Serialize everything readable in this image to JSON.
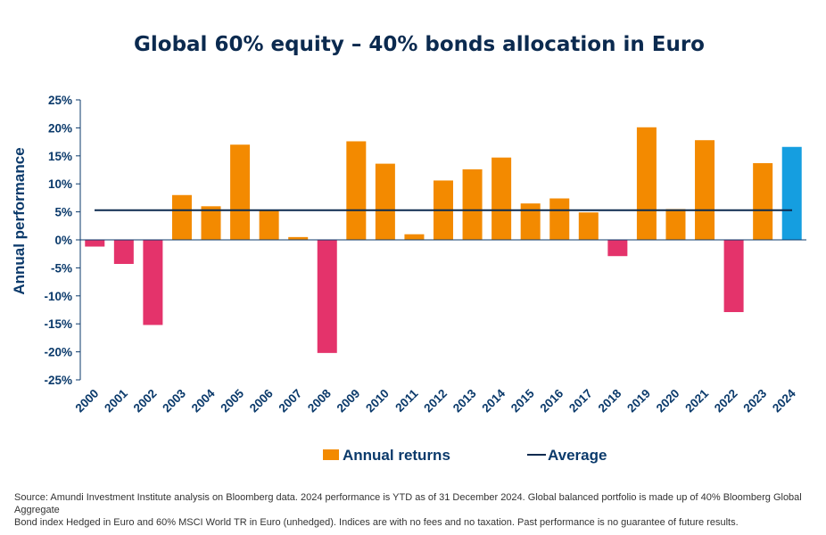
{
  "colors": {
    "positive": "#f38a00",
    "negative": "#e4336b",
    "highlight": "#159ee0",
    "average_line": "#0b2a4f",
    "axis_text": "#0b3a6b",
    "title": "#0b2a4f"
  },
  "chart_data": {
    "type": "bar",
    "title": "Global 60% equity – 40% bonds allocation in Euro",
    "ylabel": "Annual performance",
    "xlabel": "",
    "ylim": [
      -25,
      25
    ],
    "yticks": [
      25,
      20,
      15,
      10,
      5,
      0,
      -5,
      -10,
      -15,
      -20,
      -25
    ],
    "ytick_labels": [
      "25%",
      "20%",
      "15%",
      "10%",
      "5%",
      "0%",
      "-5%",
      "-10%",
      "-15%",
      "-20%",
      "-25%"
    ],
    "categories": [
      "2000",
      "2001",
      "2002",
      "2003",
      "2004",
      "2005",
      "2006",
      "2007",
      "2008",
      "2009",
      "2010",
      "2011",
      "2012",
      "2013",
      "2014",
      "2015",
      "2016",
      "2017",
      "2018",
      "2019",
      "2020",
      "2021",
      "2022",
      "2023",
      "2024"
    ],
    "series": [
      {
        "name": "Annual returns",
        "values": [
          -1.2,
          -4.3,
          -15.2,
          8.0,
          6.0,
          17.0,
          5.2,
          0.5,
          -20.2,
          17.6,
          13.6,
          1.0,
          10.6,
          12.6,
          14.7,
          6.5,
          7.4,
          4.9,
          -2.9,
          20.1,
          5.5,
          17.8,
          -12.9,
          13.7,
          16.6
        ]
      },
      {
        "name": "Average",
        "type": "line",
        "value": 5.3
      }
    ],
    "highlight_category": "2024",
    "legend": {
      "position": "bottom",
      "entries": [
        "Annual returns",
        "Average"
      ]
    },
    "grid": false
  },
  "footnote": {
    "line1": "Source: Amundi Investment Institute analysis on Bloomberg data. 2024 performance is YTD as of 31 December 2024. Global balanced portfolio is made up of 40% Bloomberg Global Aggregate",
    "line2": "Bond index Hedged in Euro and 60% MSCI World TR in Euro (unhedged). Indices are with no fees and no taxation. Past performance is no guarantee of future results."
  }
}
